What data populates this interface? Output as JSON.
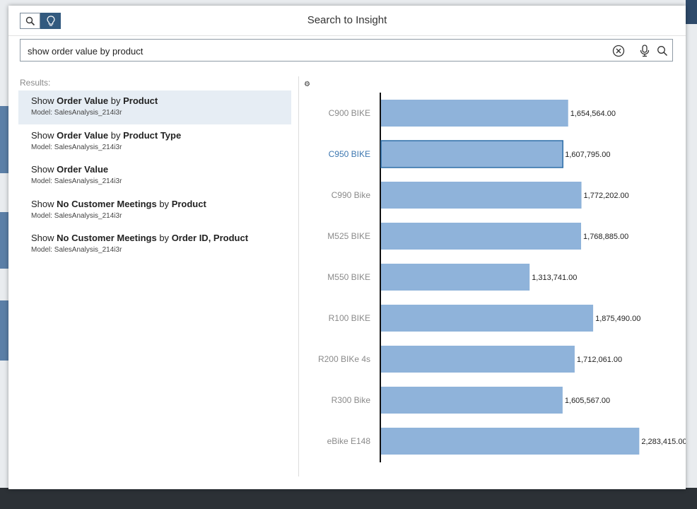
{
  "dialog": {
    "title": "Search to Insight"
  },
  "search": {
    "value": "show order value by product"
  },
  "icons": {
    "search_mode": "search-icon",
    "insight_mode": "lightbulb-icon",
    "clear": "clear-icon",
    "mic": "microphone-icon",
    "submit": "search-icon",
    "settings": "gear-icon"
  },
  "results": {
    "label": "Results:",
    "items": [
      {
        "parts": [
          {
            "t": "Show ",
            "b": false
          },
          {
            "t": "Order Value",
            "b": true
          },
          {
            "t": " by ",
            "b": false
          },
          {
            "t": "Product",
            "b": true
          }
        ],
        "model": "Model: SalesAnalysis_214i3r",
        "selected": true
      },
      {
        "parts": [
          {
            "t": "Show ",
            "b": false
          },
          {
            "t": "Order Value",
            "b": true
          },
          {
            "t": " by ",
            "b": false
          },
          {
            "t": "Product Type",
            "b": true
          }
        ],
        "model": "Model: SalesAnalysis_214i3r",
        "selected": false
      },
      {
        "parts": [
          {
            "t": "Show ",
            "b": false
          },
          {
            "t": "Order Value",
            "b": true
          }
        ],
        "model": "Model: SalesAnalysis_214i3r",
        "selected": false
      },
      {
        "parts": [
          {
            "t": "Show ",
            "b": false
          },
          {
            "t": "No Customer Meetings",
            "b": true
          },
          {
            "t": " by ",
            "b": false
          },
          {
            "t": "Product",
            "b": true
          }
        ],
        "model": "Model: SalesAnalysis_214i3r",
        "selected": false
      },
      {
        "parts": [
          {
            "t": "Show ",
            "b": false
          },
          {
            "t": "No Customer Meetings",
            "b": true
          },
          {
            "t": " by ",
            "b": false
          },
          {
            "t": "Order ID, Product",
            "b": true
          }
        ],
        "model": "Model: SalesAnalysis_214i3r",
        "selected": false
      }
    ]
  },
  "colors": {
    "bar": "#8fb3da",
    "bar_outline": "#2f6fa8",
    "accent": "#335a7f",
    "highlight_label": "#3d77b0"
  },
  "chart_data": {
    "type": "bar",
    "orientation": "horizontal",
    "categories": [
      "C900 BIKE",
      "C950 BIKE",
      "C990 Bike",
      "M525 BIKE",
      "M550 BIKE",
      "R100 BIKE",
      "R200 BIKe 4s",
      "R300 Bike",
      "eBike E148"
    ],
    "values": [
      1654564.0,
      1607795.0,
      1772202.0,
      1768885.0,
      1313741.0,
      1875490.0,
      1712061.0,
      1605567.0,
      2283415.0
    ],
    "value_labels": [
      "1,654,564.00",
      "1,607,795.00",
      "1,772,202.00",
      "1,768,885.00",
      "1,313,741.00",
      "1,875,490.00",
      "1,712,061.00",
      "1,605,567.00",
      "2,283,415.00"
    ],
    "highlighted": "C950 BIKE",
    "xlim": [
      0,
      2500000
    ],
    "grid": false,
    "legend": "none"
  }
}
